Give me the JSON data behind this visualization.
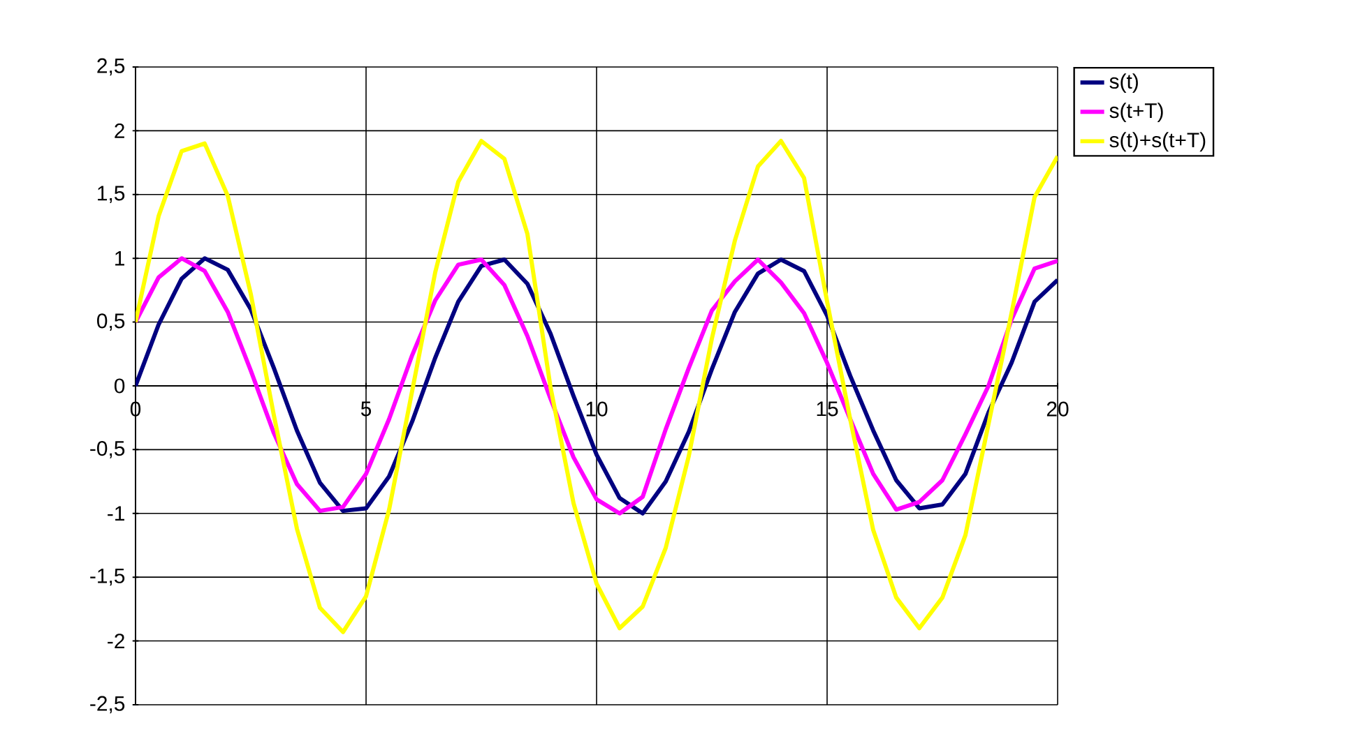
{
  "chart_data": {
    "type": "line",
    "x": [
      0,
      0.5,
      1,
      1.5,
      2,
      2.5,
      3,
      3.5,
      4,
      4.5,
      5,
      5.5,
      6,
      6.5,
      7,
      7.5,
      8,
      8.5,
      9,
      9.5,
      10,
      10.5,
      11,
      11.5,
      12,
      12.5,
      13,
      13.5,
      14,
      14.5,
      15,
      15.5,
      16,
      16.5,
      17,
      17.5,
      18,
      18.5,
      19,
      19.5,
      20
    ],
    "series": [
      {
        "name": "s(t)",
        "color": "#000080",
        "values": [
          0,
          0.48,
          0.84,
          1.0,
          0.91,
          0.6,
          0.14,
          -0.35,
          -0.76,
          -0.98,
          -0.96,
          -0.71,
          -0.28,
          0.22,
          0.66,
          0.94,
          0.99,
          0.8,
          0.41,
          -0.08,
          -0.54,
          -0.88,
          -1.0,
          -0.75,
          -0.36,
          0.13,
          0.58,
          0.88,
          0.99,
          0.9,
          0.55,
          0.08,
          -0.35,
          -0.74,
          -0.96,
          -0.93,
          -0.69,
          -0.21,
          0.18,
          0.66,
          0.83
        ]
      },
      {
        "name": "s(t+T)",
        "color": "#ff00ff",
        "values": [
          0.5,
          0.85,
          1.0,
          0.9,
          0.58,
          0.12,
          -0.37,
          -0.77,
          -0.98,
          -0.95,
          -0.69,
          -0.26,
          0.24,
          0.67,
          0.95,
          0.99,
          0.79,
          0.39,
          -0.1,
          -0.56,
          -0.89,
          -1.0,
          -0.87,
          -0.34,
          0.14,
          0.59,
          0.82,
          0.99,
          0.81,
          0.57,
          0.18,
          -0.26,
          -0.69,
          -0.97,
          -0.91,
          -0.74,
          -0.38,
          0.0,
          0.52,
          0.92,
          0.98
        ]
      },
      {
        "name": "s(t)+s(t+T)",
        "color": "#ffff00",
        "values": [
          0.5,
          1.33,
          1.84,
          1.9,
          1.49,
          0.72,
          -0.23,
          -1.12,
          -1.74,
          -1.93,
          -1.65,
          -0.97,
          -0.04,
          0.89,
          1.6,
          1.92,
          1.78,
          1.19,
          -0.01,
          -0.92,
          -1.55,
          -1.9,
          -1.73,
          -1.27,
          -0.55,
          0.37,
          1.14,
          1.72,
          1.92,
          1.63,
          0.66,
          -0.26,
          -1.13,
          -1.66,
          -1.9,
          -1.66,
          -1.17,
          -0.3,
          0.57,
          1.48,
          1.8
        ]
      }
    ],
    "xlim": [
      0,
      20
    ],
    "xticks": [
      0,
      5,
      10,
      15,
      20
    ],
    "ylim": [
      -2.5,
      2.5
    ],
    "yticks": [
      {
        "value": -2.5,
        "label": "-2,5"
      },
      -2,
      {
        "value": -1.5,
        "label": "-1,5"
      },
      -1,
      {
        "value": -0.5,
        "label": "-0,5"
      },
      0,
      {
        "value": 0.5,
        "label": "0,5"
      },
      1,
      {
        "value": 1.5,
        "label": "1,5"
      },
      2,
      {
        "value": 2.5,
        "label": "2,5"
      }
    ],
    "grid": true,
    "legend": "top right",
    "marker": "none",
    "line_style": "solid"
  }
}
